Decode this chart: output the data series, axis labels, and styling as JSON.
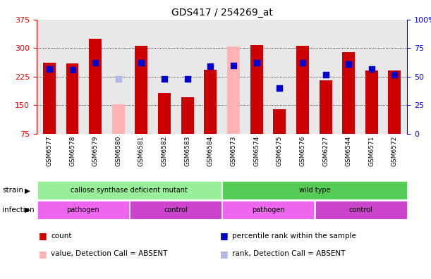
{
  "title": "GDS417 / 254269_at",
  "samples": [
    "GSM6577",
    "GSM6578",
    "GSM6579",
    "GSM6580",
    "GSM6581",
    "GSM6582",
    "GSM6583",
    "GSM6584",
    "GSM6573",
    "GSM6574",
    "GSM6575",
    "GSM6576",
    "GSM6227",
    "GSM6544",
    "GSM6571",
    "GSM6572"
  ],
  "count_values": [
    262,
    260,
    325,
    152,
    307,
    183,
    172,
    243,
    305,
    308,
    140,
    307,
    216,
    290,
    242,
    242
  ],
  "absent": [
    false,
    false,
    false,
    true,
    false,
    false,
    false,
    false,
    true,
    false,
    false,
    false,
    false,
    false,
    false,
    false
  ],
  "percentile_values": [
    57,
    56,
    62,
    48,
    62,
    48,
    48,
    59,
    60,
    62,
    40,
    62,
    52,
    61,
    57,
    52
  ],
  "absent_rank": [
    false,
    false,
    false,
    true,
    false,
    false,
    false,
    false,
    false,
    false,
    false,
    false,
    false,
    false,
    false,
    false
  ],
  "ylim_left": [
    75,
    375
  ],
  "ylim_right": [
    0,
    100
  ],
  "left_ticks": [
    75,
    150,
    225,
    300,
    375
  ],
  "right_ticks": [
    0,
    25,
    50,
    75,
    100
  ],
  "right_tick_labels": [
    "0",
    "25",
    "50",
    "75",
    "100%"
  ],
  "bar_color_present": "#cc0000",
  "bar_color_absent": "#ffb3b3",
  "dot_color_present": "#0000cc",
  "dot_color_absent": "#b0b8e8",
  "strain_groups": [
    {
      "label": "callose synthase deficient mutant",
      "start": 0,
      "end": 7,
      "color": "#99ee99"
    },
    {
      "label": "wild type",
      "start": 8,
      "end": 15,
      "color": "#55cc55"
    }
  ],
  "infection_groups": [
    {
      "label": "pathogen",
      "start": 0,
      "end": 3,
      "color": "#ee66ee"
    },
    {
      "label": "control",
      "start": 4,
      "end": 7,
      "color": "#cc44cc"
    },
    {
      "label": "pathogen",
      "start": 8,
      "end": 11,
      "color": "#ee66ee"
    },
    {
      "label": "control",
      "start": 12,
      "end": 15,
      "color": "#cc44cc"
    }
  ],
  "legend_items": [
    {
      "label": "count",
      "color": "#cc0000"
    },
    {
      "label": "percentile rank within the sample",
      "color": "#0000cc"
    },
    {
      "label": "value, Detection Call = ABSENT",
      "color": "#ffb3b3"
    },
    {
      "label": "rank, Detection Call = ABSENT",
      "color": "#b0b8e8"
    }
  ],
  "bar_width": 0.55,
  "dot_size": 28,
  "bg_color": "#e8e8e8"
}
